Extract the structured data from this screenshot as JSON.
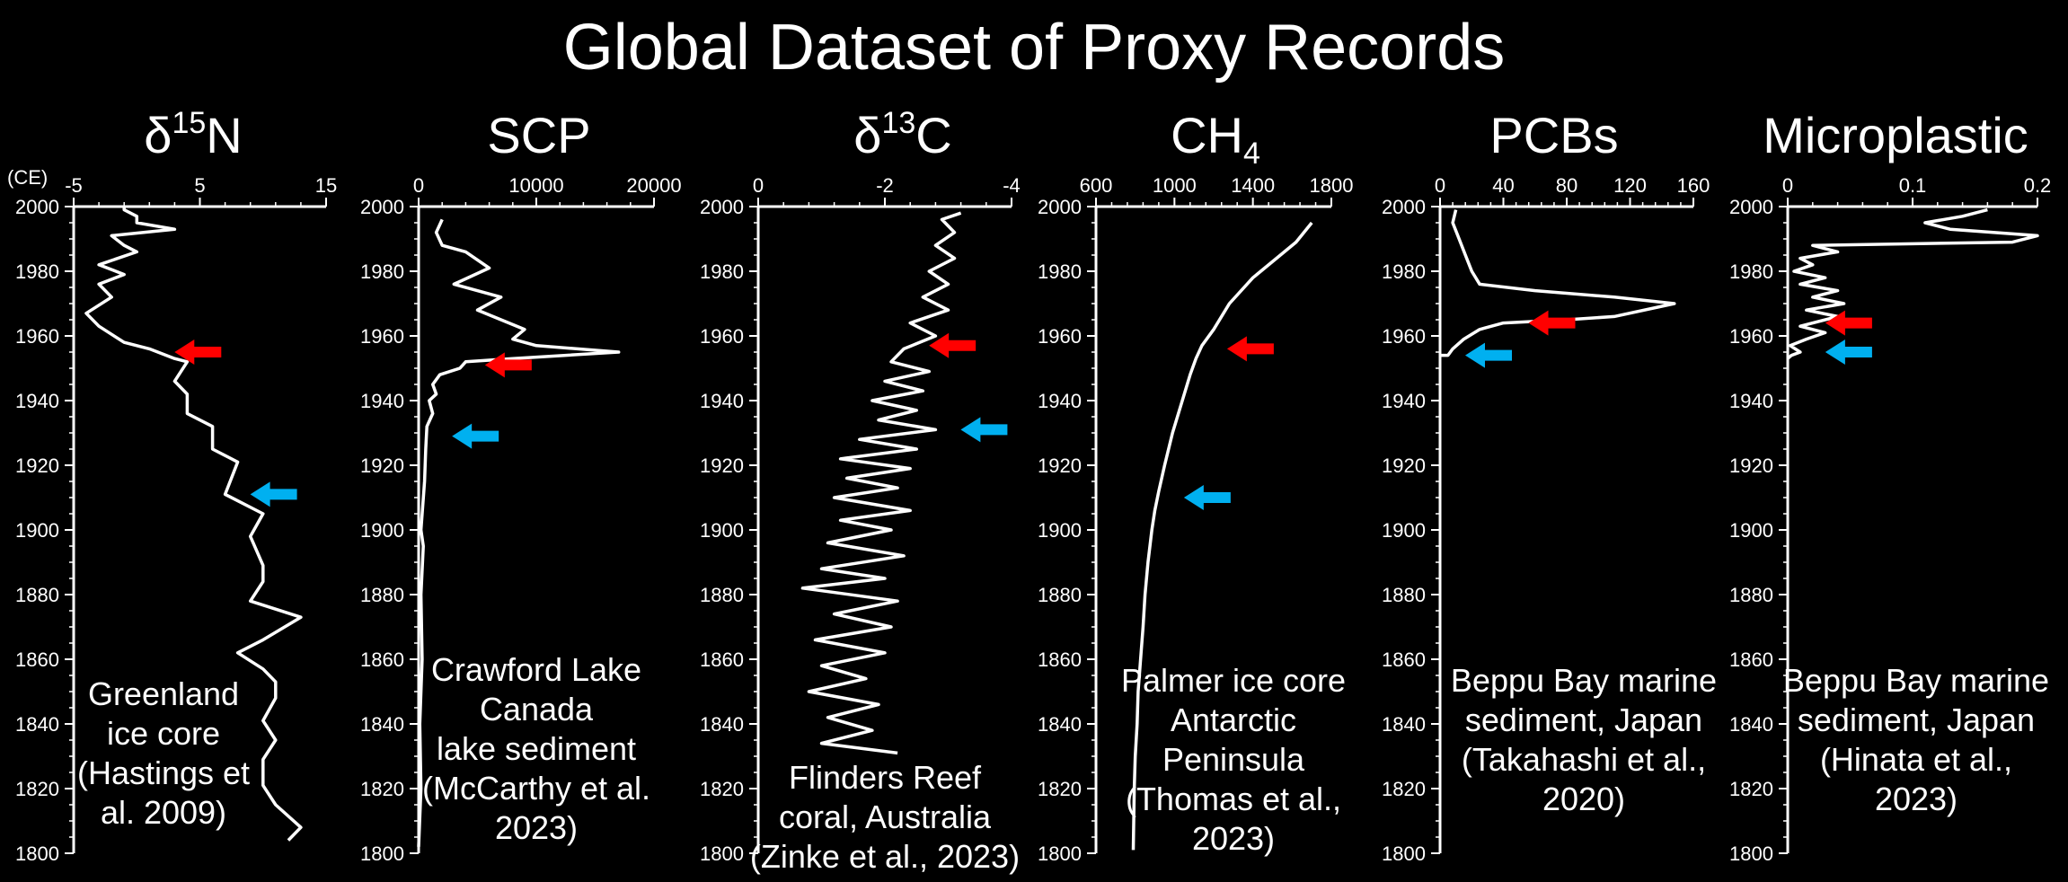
{
  "page_title": "Global Dataset of Proxy Records",
  "ce_label": "(CE)",
  "colors": {
    "background": "#000000",
    "line": "#ffffff",
    "red_arrow": "#ff0000",
    "blue_arrow": "#00b0f0"
  },
  "chart_data": [
    {
      "type": "line",
      "title": {
        "main": "δ",
        "sup": "15",
        "tail": "N"
      },
      "x_ticks": [
        "-5",
        "5",
        "15"
      ],
      "xlim": [
        -5,
        15
      ],
      "ylim": [
        1800,
        2000
      ],
      "y_ticks": [
        "2000",
        "1980",
        "1960",
        "1940",
        "1920",
        "1900",
        "1880",
        "1860",
        "1840",
        "1820",
        "1800"
      ],
      "annotation": [
        "Greenland",
        "ice core",
        "(Hastings et",
        "al. 2009)"
      ],
      "series": [
        {
          "points": [
            [
              12,
              1804
            ],
            [
              13,
              1808
            ],
            [
              11,
              1815
            ],
            [
              10,
              1821
            ],
            [
              10,
              1829
            ],
            [
              11,
              1835
            ],
            [
              10,
              1841
            ],
            [
              11,
              1848
            ],
            [
              11,
              1853
            ],
            [
              10,
              1857
            ],
            [
              8,
              1862
            ],
            [
              10,
              1866
            ],
            [
              13,
              1873
            ],
            [
              9,
              1878
            ],
            [
              10,
              1884
            ],
            [
              10,
              1889
            ],
            [
              9,
              1898
            ],
            [
              10,
              1905
            ],
            [
              7,
              1911
            ],
            [
              8,
              1921
            ],
            [
              6,
              1925
            ],
            [
              6,
              1932
            ],
            [
              4,
              1936
            ],
            [
              4,
              1942
            ],
            [
              3,
              1946
            ],
            [
              4,
              1952
            ],
            [
              3,
              1953
            ],
            [
              1,
              1956
            ],
            [
              -1,
              1958
            ],
            [
              -3,
              1963
            ],
            [
              -4,
              1967
            ],
            [
              -2,
              1972
            ],
            [
              -3,
              1976
            ],
            [
              -1,
              1979
            ],
            [
              -3,
              1982
            ],
            [
              0,
              1986
            ],
            [
              -1,
              1988
            ],
            [
              -2,
              1991
            ],
            [
              3,
              1993
            ],
            [
              0,
              1995
            ],
            [
              0,
              1997
            ],
            [
              -1,
              1999
            ],
            [
              -1,
              2000
            ]
          ]
        }
      ],
      "red_arrow_year": 1955,
      "blue_arrow_year": 1911
    },
    {
      "type": "line",
      "title": {
        "main": "SCP",
        "sup": "",
        "tail": ""
      },
      "x_ticks": [
        "0",
        "10000",
        "20000"
      ],
      "xlim": [
        0,
        20000
      ],
      "ylim": [
        1800,
        2000
      ],
      "y_ticks": [
        "2000",
        "1980",
        "1960",
        "1940",
        "1920",
        "1900",
        "1880",
        "1860",
        "1840",
        "1820",
        "1800"
      ],
      "annotation": [
        "Crawford Lake",
        "Canada",
        "lake sediment",
        "(McCarthy et al.",
        "2023)"
      ],
      "series": [
        {
          "points": [
            [
              0,
              1802
            ],
            [
              200,
              1820
            ],
            [
              100,
              1840
            ],
            [
              300,
              1860
            ],
            [
              200,
              1880
            ],
            [
              400,
              1895
            ],
            [
              200,
              1900
            ],
            [
              500,
              1915
            ],
            [
              600,
              1925
            ],
            [
              700,
              1932
            ],
            [
              1200,
              1936
            ],
            [
              900,
              1940
            ],
            [
              1500,
              1942
            ],
            [
              1200,
              1945
            ],
            [
              1800,
              1948
            ],
            [
              3500,
              1950
            ],
            [
              4000,
              1952
            ],
            [
              8000,
              1953
            ],
            [
              17000,
              1955
            ],
            [
              10000,
              1957
            ],
            [
              8000,
              1959
            ],
            [
              9000,
              1962
            ],
            [
              5000,
              1968
            ],
            [
              7000,
              1972
            ],
            [
              3000,
              1976
            ],
            [
              6000,
              1981
            ],
            [
              4000,
              1986
            ],
            [
              2000,
              1988
            ],
            [
              1500,
              1992
            ],
            [
              2000,
              1996
            ]
          ]
        }
      ],
      "red_arrow_year": 1951,
      "blue_arrow_year": 1929
    },
    {
      "type": "line",
      "title": {
        "main": "δ",
        "sup": "13",
        "tail": "C"
      },
      "x_ticks": [
        "0",
        "-2",
        "-4"
      ],
      "xlim": [
        0,
        -4
      ],
      "ylim": [
        1800,
        2000
      ],
      "y_ticks": [
        "2000",
        "1980",
        "1960",
        "1940",
        "1920",
        "1900",
        "1880",
        "1860",
        "1840",
        "1820",
        "1800"
      ],
      "annotation": [
        "Flinders Reef",
        "coral,  Australia",
        "(Zinke et al., 2023)"
      ],
      "series": [
        {
          "points": [
            [
              -2.2,
              1831
            ],
            [
              -1.0,
              1834
            ],
            [
              -1.8,
              1838
            ],
            [
              -1.1,
              1842
            ],
            [
              -1.9,
              1846
            ],
            [
              -0.8,
              1850
            ],
            [
              -1.7,
              1854
            ],
            [
              -1.0,
              1858
            ],
            [
              -2.0,
              1862
            ],
            [
              -0.9,
              1866
            ],
            [
              -2.1,
              1870
            ],
            [
              -1.2,
              1874
            ],
            [
              -2.2,
              1878
            ],
            [
              -0.7,
              1882
            ],
            [
              -2.0,
              1885
            ],
            [
              -1.0,
              1888
            ],
            [
              -2.3,
              1892
            ],
            [
              -1.1,
              1896
            ],
            [
              -2.1,
              1900
            ],
            [
              -1.3,
              1903
            ],
            [
              -2.4,
              1906
            ],
            [
              -1.2,
              1910
            ],
            [
              -2.2,
              1913
            ],
            [
              -1.4,
              1916
            ],
            [
              -2.4,
              1919
            ],
            [
              -1.3,
              1922
            ],
            [
              -2.5,
              1925
            ],
            [
              -1.6,
              1928
            ],
            [
              -2.8,
              1931
            ],
            [
              -1.9,
              1934
            ],
            [
              -2.5,
              1937
            ],
            [
              -1.8,
              1940
            ],
            [
              -2.6,
              1943
            ],
            [
              -2.0,
              1946
            ],
            [
              -2.7,
              1949
            ],
            [
              -2.1,
              1952
            ],
            [
              -2.3,
              1956
            ],
            [
              -2.8,
              1960
            ],
            [
              -2.4,
              1964
            ],
            [
              -3.0,
              1968
            ],
            [
              -2.6,
              1972
            ],
            [
              -3.0,
              1976
            ],
            [
              -2.7,
              1980
            ],
            [
              -3.1,
              1984
            ],
            [
              -2.8,
              1988
            ],
            [
              -3.1,
              1992
            ],
            [
              -2.9,
              1996
            ],
            [
              -3.2,
              1998
            ]
          ]
        }
      ],
      "red_arrow_year": 1957,
      "blue_arrow_year": 1931
    },
    {
      "type": "line",
      "title": {
        "main": "CH",
        "sup": "",
        "tail": "",
        "sub": "4"
      },
      "x_ticks": [
        "600",
        "1000",
        "1400",
        "1800"
      ],
      "xlim": [
        600,
        1800
      ],
      "ylim": [
        1800,
        2000
      ],
      "y_ticks": [
        "2000",
        "1980",
        "1960",
        "1940",
        "1920",
        "1900",
        "1880",
        "1860",
        "1840",
        "1820",
        "1800"
      ],
      "annotation": [
        "Palmer ice core",
        "Antarctic",
        "Peninsula",
        "(Thomas et al.,",
        "2023)"
      ],
      "series": [
        {
          "points": [
            [
              790,
              1801
            ],
            [
              795,
              1820
            ],
            [
              800,
              1830
            ],
            [
              810,
              1840
            ],
            [
              815,
              1850
            ],
            [
              825,
              1858
            ],
            [
              830,
              1862
            ],
            [
              840,
              1870
            ],
            [
              850,
              1880
            ],
            [
              865,
              1890
            ],
            [
              885,
              1900
            ],
            [
              900,
              1906
            ],
            [
              920,
              1912
            ],
            [
              950,
              1920
            ],
            [
              990,
              1930
            ],
            [
              1040,
              1940
            ],
            [
              1080,
              1948
            ],
            [
              1110,
              1953
            ],
            [
              1140,
              1957
            ],
            [
              1200,
              1962
            ],
            [
              1280,
              1970
            ],
            [
              1400,
              1978
            ],
            [
              1520,
              1984
            ],
            [
              1620,
              1989
            ],
            [
              1700,
              1995
            ]
          ]
        }
      ],
      "red_arrow_year": 1956,
      "blue_arrow_year": 1910
    },
    {
      "type": "line",
      "title": {
        "main": "PCBs",
        "sup": "",
        "tail": ""
      },
      "x_ticks": [
        "0",
        "40",
        "80",
        "120",
        "160"
      ],
      "xlim": [
        0,
        160
      ],
      "ylim": [
        1800,
        2000
      ],
      "y_ticks": [
        "2000",
        "1980",
        "1960",
        "1940",
        "1920",
        "1900",
        "1880",
        "1860",
        "1840",
        "1820",
        "1800"
      ],
      "annotation": [
        "Beppu Bay marine",
        "sediment, Japan",
        "(Takahashi et al.,",
        "2020)"
      ],
      "series": [
        {
          "points": [
            [
              0,
              1954
            ],
            [
              5,
              1954
            ],
            [
              8,
              1956
            ],
            [
              15,
              1959
            ],
            [
              25,
              1962
            ],
            [
              40,
              1964
            ],
            [
              80,
              1965
            ],
            [
              110,
              1966
            ],
            [
              148,
              1970
            ],
            [
              110,
              1972
            ],
            [
              60,
              1974
            ],
            [
              25,
              1976
            ],
            [
              20,
              1980
            ],
            [
              16,
              1985
            ],
            [
              12,
              1990
            ],
            [
              8,
              1995
            ],
            [
              10,
              1999
            ]
          ]
        }
      ],
      "red_arrow_year": 1964,
      "blue_arrow_year": 1954
    },
    {
      "type": "line",
      "title": {
        "main": "Microplastic",
        "sup": "",
        "tail": ""
      },
      "x_ticks": [
        "0",
        "0.1",
        "0.2"
      ],
      "xlim": [
        0,
        0.2
      ],
      "ylim": [
        1800,
        2000
      ],
      "y_ticks": [
        "2000",
        "1980",
        "1960",
        "1940",
        "1920",
        "1900",
        "1880",
        "1860",
        "1840",
        "1820",
        "1800"
      ],
      "annotation": [
        "Beppu Bay marine",
        "sediment, Japan",
        "(Hinata et al.,",
        "2023)"
      ],
      "series": [
        {
          "points": [
            [
              0,
              1953
            ],
            [
              0.003,
              1954
            ],
            [
              0.01,
              1955
            ],
            [
              0.002,
              1957
            ],
            [
              0.015,
              1959
            ],
            [
              0.03,
              1961
            ],
            [
              0.01,
              1963
            ],
            [
              0.04,
              1966
            ],
            [
              0.015,
              1968
            ],
            [
              0.045,
              1970
            ],
            [
              0.02,
              1972
            ],
            [
              0.04,
              1974
            ],
            [
              0.01,
              1976
            ],
            [
              0.03,
              1978
            ],
            [
              0.005,
              1980
            ],
            [
              0.02,
              1982
            ],
            [
              0.01,
              1984
            ],
            [
              0.04,
              1986
            ],
            [
              0.02,
              1988
            ],
            [
              0.18,
              1989
            ],
            [
              0.2,
              1991
            ],
            [
              0.13,
              1993
            ],
            [
              0.11,
              1995
            ],
            [
              0.14,
              1997
            ],
            [
              0.16,
              1999
            ]
          ]
        }
      ],
      "red_arrow_year": 1964,
      "blue_arrow_year": 1955
    }
  ]
}
